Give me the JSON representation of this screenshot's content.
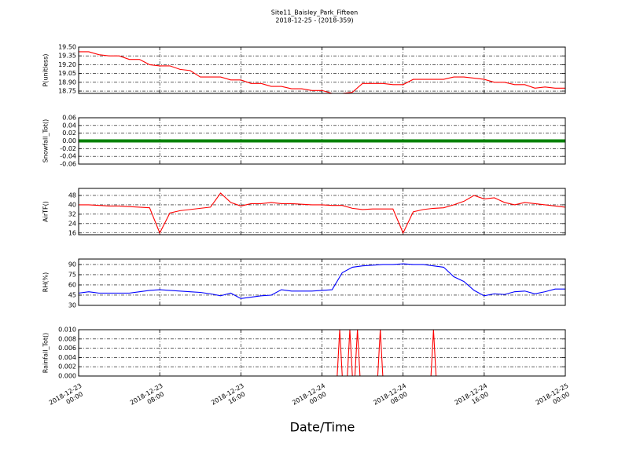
{
  "chart_data": [
    {
      "type": "line",
      "title": "Site11_Baisley_Park_Fifteen",
      "subtitle": "2018-12-25 - (2018-359)",
      "ylabel": "P(unitless)",
      "color": "#ff0000",
      "xlim": [
        "2018-12-23 00:00",
        "2018-12-25 00:00"
      ],
      "xticks": [
        "2018-12-23 00:00",
        "2018-12-23 08:00",
        "2018-12-23 16:00",
        "2018-12-24 00:00",
        "2018-12-24 08:00",
        "2018-12-24 16:00",
        "2018-12-25 00:00"
      ],
      "ylim": [
        18.71,
        19.5
      ],
      "yticks": [
        {
          "value": 19.5,
          "label": "19.50"
        },
        19.35,
        {
          "value": 19.2,
          "label": "19.20"
        },
        19.05,
        {
          "value": 18.9,
          "label": "18.90"
        },
        18.75
      ],
      "grid": true,
      "x": [
        "2018-12-23 00:00",
        "2018-12-23 01:00",
        "2018-12-23 02:00",
        "2018-12-23 03:00",
        "2018-12-23 04:00",
        "2018-12-23 05:00",
        "2018-12-23 06:00",
        "2018-12-23 07:00",
        "2018-12-23 08:00",
        "2018-12-23 09:00",
        "2018-12-23 10:00",
        "2018-12-23 11:00",
        "2018-12-23 12:00",
        "2018-12-23 13:00",
        "2018-12-23 14:00",
        "2018-12-23 15:00",
        "2018-12-23 16:00",
        "2018-12-23 17:00",
        "2018-12-23 18:00",
        "2018-12-23 19:00",
        "2018-12-23 20:00",
        "2018-12-23 21:00",
        "2018-12-23 22:00",
        "2018-12-23 23:00",
        "2018-12-24 00:00",
        "2018-12-24 01:00",
        "2018-12-24 02:00",
        "2018-12-24 03:00",
        "2018-12-24 04:00",
        "2018-12-24 05:00",
        "2018-12-24 06:00",
        "2018-12-24 07:00",
        "2018-12-24 08:00",
        "2018-12-24 09:00",
        "2018-12-24 10:00",
        "2018-12-24 11:00",
        "2018-12-24 12:00",
        "2018-12-24 13:00",
        "2018-12-24 14:00",
        "2018-12-24 15:00",
        "2018-12-24 16:00",
        "2018-12-24 17:00",
        "2018-12-24 18:00",
        "2018-12-24 19:00",
        "2018-12-24 20:00",
        "2018-12-24 21:00",
        "2018-12-24 22:00",
        "2018-12-24 23:00",
        "2018-12-25 00:00"
      ],
      "values": [
        19.42,
        19.42,
        19.37,
        19.35,
        19.35,
        19.29,
        19.29,
        19.2,
        19.18,
        19.18,
        19.12,
        19.1,
        18.99,
        18.99,
        18.99,
        18.94,
        18.94,
        18.88,
        18.88,
        18.83,
        18.83,
        18.79,
        18.79,
        18.76,
        18.76,
        18.71,
        18.71,
        18.73,
        18.88,
        18.88,
        18.88,
        18.86,
        18.86,
        18.95,
        18.95,
        18.95,
        18.95,
        18.99,
        18.99,
        18.97,
        18.95,
        18.9,
        18.9,
        18.86,
        18.86,
        18.8,
        18.82,
        18.8,
        18.8
      ]
    },
    {
      "type": "line",
      "ylabel": "Snowfall_Tot()",
      "color": "#008000",
      "markers": true,
      "xlim": [
        "2018-12-23 00:00",
        "2018-12-25 00:00"
      ],
      "xticks": [
        "2018-12-23 00:00",
        "2018-12-23 08:00",
        "2018-12-23 16:00",
        "2018-12-24 00:00",
        "2018-12-24 08:00",
        "2018-12-24 16:00",
        "2018-12-25 00:00"
      ],
      "ylim": [
        -0.06,
        0.06
      ],
      "yticks": [
        0.06,
        0.04,
        0.02,
        {
          "value": 0,
          "label": "0.00"
        },
        -0.02,
        -0.04,
        -0.06
      ],
      "grid": true,
      "x": [
        "2018-12-23 00:00",
        "2018-12-23 01:00",
        "2018-12-23 02:00",
        "2018-12-23 03:00",
        "2018-12-23 04:00",
        "2018-12-23 05:00",
        "2018-12-23 06:00",
        "2018-12-23 07:00",
        "2018-12-23 08:00",
        "2018-12-23 09:00",
        "2018-12-23 10:00",
        "2018-12-23 11:00",
        "2018-12-23 12:00",
        "2018-12-23 13:00",
        "2018-12-23 14:00",
        "2018-12-23 15:00",
        "2018-12-23 16:00",
        "2018-12-23 17:00",
        "2018-12-23 18:00",
        "2018-12-23 19:00",
        "2018-12-23 20:00",
        "2018-12-23 21:00",
        "2018-12-23 22:00",
        "2018-12-23 23:00",
        "2018-12-24 00:00",
        "2018-12-24 01:00",
        "2018-12-24 02:00",
        "2018-12-24 03:00",
        "2018-12-24 04:00",
        "2018-12-24 05:00",
        "2018-12-24 06:00",
        "2018-12-24 07:00",
        "2018-12-24 08:00",
        "2018-12-24 09:00",
        "2018-12-24 10:00",
        "2018-12-24 11:00",
        "2018-12-24 12:00",
        "2018-12-24 13:00",
        "2018-12-24 14:00",
        "2018-12-24 15:00",
        "2018-12-24 16:00",
        "2018-12-24 17:00",
        "2018-12-24 18:00",
        "2018-12-24 19:00",
        "2018-12-24 20:00",
        "2018-12-24 21:00",
        "2018-12-24 22:00",
        "2018-12-24 23:00",
        "2018-12-25 00:00"
      ],
      "values": [
        0,
        0,
        0,
        0,
        0,
        0,
        0,
        0,
        0,
        0,
        0,
        0,
        0,
        0,
        0,
        0,
        0,
        0,
        0,
        0,
        0,
        0,
        0,
        0,
        0,
        0,
        0,
        0,
        0,
        0,
        0,
        0,
        0,
        0,
        0,
        0,
        0,
        0,
        0,
        0,
        0,
        0,
        0,
        0,
        0,
        0,
        0,
        0,
        0
      ]
    },
    {
      "type": "line",
      "ylabel": "AirTF()",
      "color": "#ff0000",
      "xlim": [
        "2018-12-23 00:00",
        "2018-12-25 00:00"
      ],
      "xticks": [
        "2018-12-23 00:00",
        "2018-12-23 08:00",
        "2018-12-23 16:00",
        "2018-12-24 00:00",
        "2018-12-24 08:00",
        "2018-12-24 16:00",
        "2018-12-25 00:00"
      ],
      "ylim": [
        14.5,
        54
      ],
      "yticks": [
        48,
        40,
        32,
        24,
        16
      ],
      "grid": true,
      "x": [
        "2018-12-23 00:00",
        "2018-12-23 01:00",
        "2018-12-23 02:00",
        "2018-12-23 03:00",
        "2018-12-23 04:00",
        "2018-12-23 05:00",
        "2018-12-23 06:00",
        "2018-12-23 07:00",
        "2018-12-23 08:00",
        "2018-12-23 09:00",
        "2018-12-23 10:00",
        "2018-12-23 11:00",
        "2018-12-23 12:00",
        "2018-12-23 13:00",
        "2018-12-23 14:00",
        "2018-12-23 15:00",
        "2018-12-23 16:00",
        "2018-12-23 17:00",
        "2018-12-23 18:00",
        "2018-12-23 19:00",
        "2018-12-23 20:00",
        "2018-12-23 21:00",
        "2018-12-23 22:00",
        "2018-12-23 23:00",
        "2018-12-24 00:00",
        "2018-12-24 01:00",
        "2018-12-24 02:00",
        "2018-12-24 03:00",
        "2018-12-24 04:00",
        "2018-12-24 05:00",
        "2018-12-24 06:00",
        "2018-12-24 07:00",
        "2018-12-24 08:00",
        "2018-12-24 09:00",
        "2018-12-24 10:00",
        "2018-12-24 11:00",
        "2018-12-24 12:00",
        "2018-12-24 13:00",
        "2018-12-24 14:00",
        "2018-12-24 15:00",
        "2018-12-24 16:00",
        "2018-12-24 17:00",
        "2018-12-24 18:00",
        "2018-12-24 19:00",
        "2018-12-24 20:00",
        "2018-12-24 21:00",
        "2018-12-24 22:00",
        "2018-12-24 23:00",
        "2018-12-25 00:00"
      ],
      "values": [
        40,
        40,
        39.5,
        39,
        39,
        38.5,
        38,
        37.5,
        16,
        33,
        35,
        36,
        37,
        38,
        50,
        42,
        39,
        41,
        41,
        42,
        41,
        41,
        40.5,
        40,
        40,
        39.5,
        39.5,
        37,
        36,
        36.5,
        36.5,
        36.5,
        16,
        34,
        36,
        37,
        37.5,
        40,
        43,
        48,
        45,
        46,
        42,
        40,
        42,
        41,
        40,
        39,
        38
      ]
    },
    {
      "type": "line",
      "ylabel": "RH(%)",
      "color": "#0000ff",
      "xlim": [
        "2018-12-23 00:00",
        "2018-12-25 00:00"
      ],
      "xticks": [
        "2018-12-23 00:00",
        "2018-12-23 08:00",
        "2018-12-23 16:00",
        "2018-12-24 00:00",
        "2018-12-24 08:00",
        "2018-12-24 16:00",
        "2018-12-25 00:00"
      ],
      "ylim": [
        30,
        98
      ],
      "yticks": [
        90,
        75,
        60,
        45,
        30
      ],
      "grid": true,
      "x": [
        "2018-12-23 00:00",
        "2018-12-23 01:00",
        "2018-12-23 02:00",
        "2018-12-23 03:00",
        "2018-12-23 04:00",
        "2018-12-23 05:00",
        "2018-12-23 06:00",
        "2018-12-23 07:00",
        "2018-12-23 08:00",
        "2018-12-23 09:00",
        "2018-12-23 10:00",
        "2018-12-23 11:00",
        "2018-12-23 12:00",
        "2018-12-23 13:00",
        "2018-12-23 14:00",
        "2018-12-23 15:00",
        "2018-12-23 16:00",
        "2018-12-23 17:00",
        "2018-12-23 18:00",
        "2018-12-23 19:00",
        "2018-12-23 20:00",
        "2018-12-23 21:00",
        "2018-12-23 22:00",
        "2018-12-23 23:00",
        "2018-12-24 00:00",
        "2018-12-24 01:00",
        "2018-12-24 02:00",
        "2018-12-24 03:00",
        "2018-12-24 04:00",
        "2018-12-24 05:00",
        "2018-12-24 06:00",
        "2018-12-24 07:00",
        "2018-12-24 08:00",
        "2018-12-24 09:00",
        "2018-12-24 10:00",
        "2018-12-24 11:00",
        "2018-12-24 12:00",
        "2018-12-24 13:00",
        "2018-12-24 14:00",
        "2018-12-24 15:00",
        "2018-12-24 16:00",
        "2018-12-24 17:00",
        "2018-12-24 18:00",
        "2018-12-24 19:00",
        "2018-12-24 20:00",
        "2018-12-24 21:00",
        "2018-12-24 22:00",
        "2018-12-24 23:00",
        "2018-12-25 00:00"
      ],
      "values": [
        48,
        50,
        48,
        48,
        48,
        48,
        50,
        52,
        53,
        52,
        51,
        50,
        49,
        47,
        44,
        48,
        40,
        42,
        44,
        45,
        53,
        51,
        51,
        51,
        52,
        53,
        78,
        86,
        88,
        89,
        90,
        90,
        91,
        90,
        90,
        88,
        86,
        72,
        65,
        52,
        44,
        47,
        46,
        50,
        51,
        47,
        50,
        54,
        54
      ]
    },
    {
      "type": "line",
      "ylabel": "Rainfall_Tot()",
      "xlabel": "Date/Time",
      "color": "#ff0000",
      "xlim": [
        "2018-12-23 00:00",
        "2018-12-25 00:00"
      ],
      "xticks": [
        "2018-12-23 00:00",
        "2018-12-23 08:00",
        "2018-12-23 16:00",
        "2018-12-24 00:00",
        "2018-12-24 08:00",
        "2018-12-24 16:00",
        "2018-12-25 00:00"
      ],
      "ylim": [
        0,
        0.01
      ],
      "yticks": [
        {
          "value": 0.01,
          "label": "0.010"
        },
        0.008,
        0.006,
        0.004,
        0.002,
        {
          "value": 0,
          "label": "0.000"
        }
      ],
      "grid": true,
      "show_xtick_labels": true,
      "x": [
        "2018-12-23 00:00",
        "2018-12-24 01:30",
        "2018-12-24 01:45",
        "2018-12-24 02:00",
        "2018-12-24 02:30",
        "2018-12-24 02:45",
        "2018-12-24 03:00",
        "2018-12-24 03:15",
        "2018-12-24 03:30",
        "2018-12-24 03:45",
        "2018-12-24 05:30",
        "2018-12-24 05:45",
        "2018-12-24 06:00",
        "2018-12-24 10:45",
        "2018-12-24 11:00",
        "2018-12-24 11:15",
        "2018-12-25 00:00"
      ],
      "values": [
        0,
        0,
        0.01,
        0,
        0,
        0.01,
        0,
        0,
        0.01,
        0,
        0,
        0.01,
        0,
        0,
        0.01,
        0,
        0
      ]
    }
  ]
}
